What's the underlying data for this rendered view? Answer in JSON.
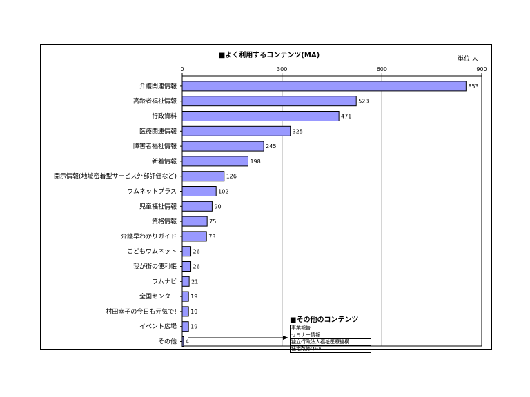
{
  "chart_data": {
    "type": "bar",
    "orientation": "horizontal",
    "title": "■よく利用するコンテンツ(MA)",
    "unit_label": "単位:人",
    "xlim": [
      0,
      900
    ],
    "x_ticks": [
      0,
      300,
      600,
      900
    ],
    "grid": true,
    "bar_color": "#9999ff",
    "categories": [
      "介護関連情報",
      "高齢者福祉情報",
      "行政資料",
      "医療関連情報",
      "障害者福祉情報",
      "新着情報",
      "開示情報(地域密着型サービス外部評価など)",
      "ワムネットプラス",
      "児童福祉情報",
      "資格情報",
      "介護早わかりガイド",
      "こどもワムネット",
      "我が街の便利帳",
      "ワムナビ",
      "全国センター",
      "村田幸子の今日も元気で!",
      "イベント広場",
      "その他"
    ],
    "values": [
      853,
      523,
      471,
      325,
      245,
      198,
      126,
      102,
      90,
      75,
      73,
      26,
      26,
      21,
      19,
      19,
      19,
      4
    ],
    "annotation": {
      "title": "■その他のコンテンツ",
      "items": [
        "事業報告",
        "セミナー情報",
        "独立行政法人福祉医療機構",
        "住宅改修Q&A"
      ]
    }
  }
}
